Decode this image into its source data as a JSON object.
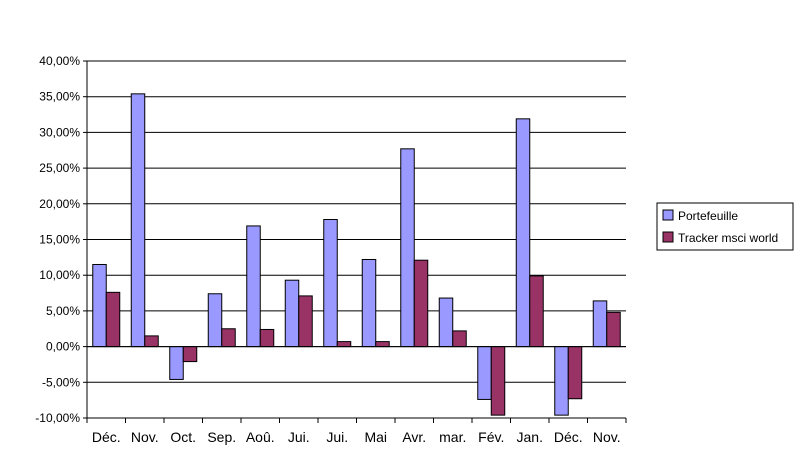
{
  "chart_data": {
    "type": "bar",
    "categories": [
      "Déc.",
      "Nov.",
      "Oct.",
      "Sep.",
      "Aoû.",
      "Jui.",
      "Jui.",
      "Mai",
      "Avr.",
      "mar.",
      "Fév.",
      "Jan.",
      "Déc.",
      "Nov."
    ],
    "series": [
      {
        "name": "Portefeuille",
        "color": "#9999ff",
        "values": [
          11.5,
          35.4,
          -4.6,
          7.4,
          16.9,
          9.3,
          17.8,
          12.2,
          27.7,
          6.8,
          -7.4,
          31.9,
          -9.6,
          6.4
        ]
      },
      {
        "name": "Tracker msci world",
        "color": "#993366",
        "values": [
          7.6,
          1.5,
          -2.1,
          2.5,
          2.4,
          7.1,
          0.7,
          0.7,
          12.1,
          2.2,
          -9.6,
          9.9,
          -7.3,
          4.8
        ]
      }
    ],
    "y_ticks": [
      "40,00%",
      "35,00%",
      "30,00%",
      "25,00%",
      "20,00%",
      "15,00%",
      "10,00%",
      "5,00%",
      "0,00%",
      "-5,00%",
      "-10,00%"
    ],
    "ylim": [
      -10,
      40
    ],
    "y_step": 5,
    "grid": true,
    "legend_position": "right"
  }
}
